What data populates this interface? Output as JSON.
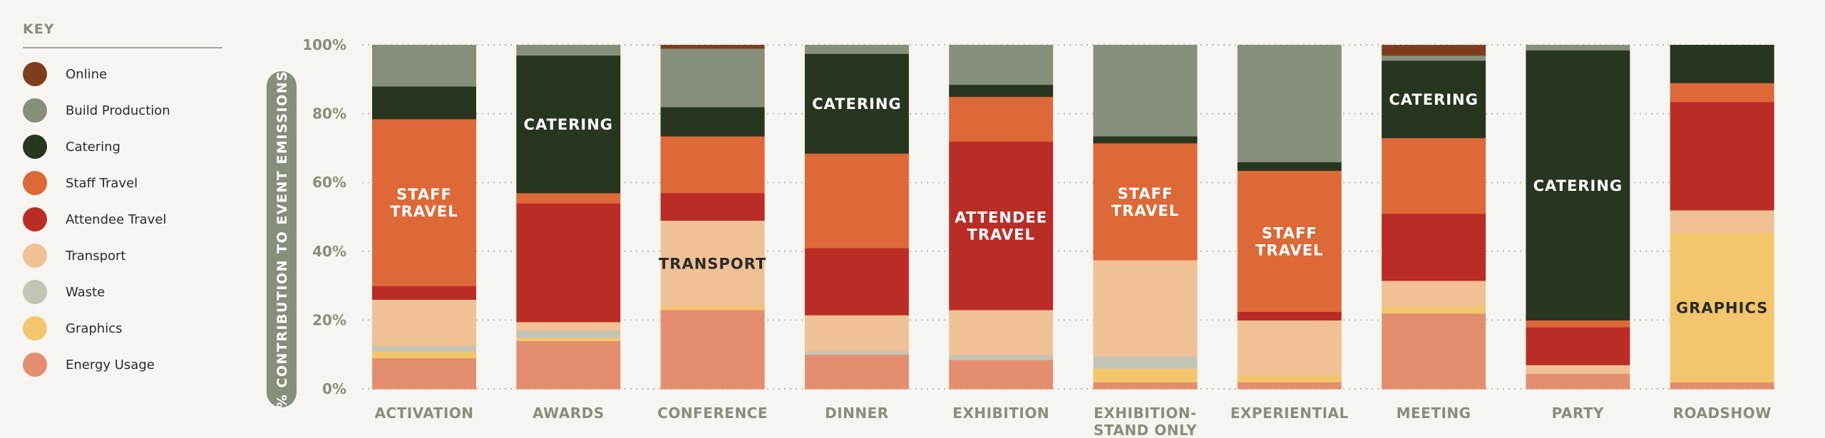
{
  "legend": {
    "title": "KEY",
    "items": [
      {
        "label": "Online",
        "color": "#7e3e1d"
      },
      {
        "label": "Build Production",
        "color": "#868e7c"
      },
      {
        "label": "Catering",
        "color": "#283520"
      },
      {
        "label": "Staff Travel",
        "color": "#dc6937"
      },
      {
        "label": "Attendee Travel",
        "color": "#ba2d27"
      },
      {
        "label": "Transport",
        "color": "#f0c195"
      },
      {
        "label": "Waste",
        "color": "#c3c4b6"
      },
      {
        "label": "Graphics",
        "color": "#f3c56d"
      },
      {
        "label": "Energy Usage",
        "color": "#e38f6f"
      }
    ]
  },
  "chart_data": {
    "type": "bar",
    "stacked": true,
    "ylabel": "% CONTRIBUTION TO EVENT EMISSIONS",
    "ylim": [
      0,
      100
    ],
    "yticks": [
      "0%",
      "20%",
      "40%",
      "60%",
      "80%",
      "100%"
    ],
    "grid": "horizontal dotted",
    "legend_placement": "left",
    "categories": [
      "ACTIVATION",
      "AWARDS",
      "CONFERENCE",
      "DINNER",
      "EXHIBITION",
      "EXHIBITION-\nSTAND ONLY",
      "EXPERIENTIAL",
      "MEETING",
      "PARTY",
      "ROADSHOW"
    ],
    "series": [
      {
        "name": "Energy Usage",
        "color": "#e38f6f",
        "values": [
          9,
          14,
          23,
          10,
          8.5,
          2,
          2,
          22,
          4.5,
          2
        ]
      },
      {
        "name": "Graphics",
        "color": "#f3c56d",
        "values": [
          2,
          1,
          1,
          0,
          0,
          4,
          2,
          2,
          0,
          43.5
        ]
      },
      {
        "name": "Waste",
        "color": "#c3c4b6",
        "values": [
          1.5,
          2,
          0,
          1,
          1.5,
          3.5,
          0,
          0,
          0,
          0
        ]
      },
      {
        "name": "Transport",
        "color": "#f0c195",
        "values": [
          13.5,
          2.5,
          25,
          10.5,
          13,
          28,
          16,
          7.5,
          2.5,
          6.5
        ]
      },
      {
        "name": "Attendee Travel",
        "color": "#ba2d27",
        "values": [
          4,
          34.5,
          8,
          19.5,
          49,
          0,
          2.5,
          19.5,
          11,
          31.5
        ]
      },
      {
        "name": "Staff Travel",
        "color": "#dc6937",
        "values": [
          48.5,
          3,
          16.5,
          27.5,
          13,
          34,
          41,
          22,
          2,
          5.5
        ]
      },
      {
        "name": "Catering",
        "color": "#283520",
        "values": [
          9.5,
          40,
          8.5,
          29,
          3.5,
          2,
          2.5,
          22.5,
          78.5,
          11
        ]
      },
      {
        "name": "Build Production",
        "color": "#868e7c",
        "values": [
          12,
          3,
          17,
          2.5,
          11.5,
          26.5,
          34,
          1.5,
          1.5,
          0
        ]
      },
      {
        "name": "Online",
        "color": "#7e3e1d",
        "values": [
          0,
          0,
          1,
          0,
          0,
          0,
          0,
          3,
          0,
          0
        ]
      }
    ],
    "annotations": [
      {
        "category": "ACTIVATION",
        "series": "Staff Travel",
        "text": "STAFF\nTRAVEL",
        "color": "#ffffff"
      },
      {
        "category": "AWARDS",
        "series": "Catering",
        "text": "CATERING",
        "color": "#ffffff"
      },
      {
        "category": "CONFERENCE",
        "series": "Transport",
        "text": "TRANSPORT",
        "color": "#2b2b2b"
      },
      {
        "category": "DINNER",
        "series": "Catering",
        "text": "CATERING",
        "color": "#ffffff"
      },
      {
        "category": "EXHIBITION",
        "series": "Attendee Travel",
        "text": "ATTENDEE\nTRAVEL",
        "color": "#ffffff"
      },
      {
        "category": "EXHIBITION-\nSTAND ONLY",
        "series": "Staff Travel",
        "text": "STAFF\nTRAVEL",
        "color": "#ffffff"
      },
      {
        "category": "EXPERIENTIAL",
        "series": "Staff Travel",
        "text": "STAFF\nTRAVEL",
        "color": "#ffffff"
      },
      {
        "category": "MEETING",
        "series": "Catering",
        "text": "CATERING",
        "color": "#ffffff"
      },
      {
        "category": "PARTY",
        "series": "Catering",
        "text": "CATERING",
        "color": "#ffffff"
      },
      {
        "category": "ROADSHOW",
        "series": "Graphics",
        "text": "GRAPHICS",
        "color": "#2b2b2b"
      }
    ]
  }
}
